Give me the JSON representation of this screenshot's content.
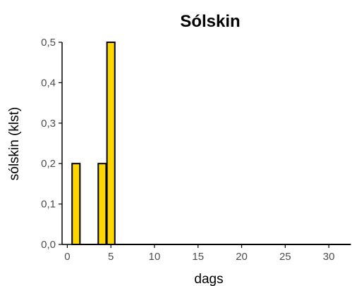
{
  "chart_data": {
    "type": "bar",
    "title": "Sólskin",
    "xlabel": "dags",
    "ylabel": "sólskin (klst)",
    "xlim": [
      -0.6,
      32.5
    ],
    "ylim": [
      0,
      0.5
    ],
    "x_ticks": [
      0,
      5,
      10,
      15,
      20,
      25,
      30
    ],
    "x_tick_labels": [
      "0",
      "5",
      "10",
      "15",
      "20",
      "25",
      "30"
    ],
    "y_ticks": [
      0,
      0.1,
      0.2,
      0.3,
      0.4,
      0.5
    ],
    "y_tick_labels": [
      "0,0",
      "0,1",
      "0,2",
      "0,3",
      "0,4",
      "0,5"
    ],
    "grid": false,
    "bar_color": "#FFD700",
    "bar_outline": "#000000",
    "bar_width": 0.9,
    "x": [
      1,
      2,
      3,
      4,
      5,
      6,
      7,
      8,
      9,
      10,
      11,
      12,
      13,
      14,
      15,
      16,
      17,
      18,
      19,
      20,
      21,
      22,
      23,
      24,
      25,
      26,
      27,
      28,
      29,
      30,
      31,
      32
    ],
    "values": [
      0.2,
      0,
      0,
      0.2,
      0.5,
      0,
      0,
      0,
      0,
      0,
      0,
      0,
      0,
      0,
      0,
      0,
      0,
      0,
      0,
      0,
      0,
      0,
      0,
      0,
      0,
      0,
      0,
      0,
      0,
      0,
      0,
      0
    ]
  }
}
